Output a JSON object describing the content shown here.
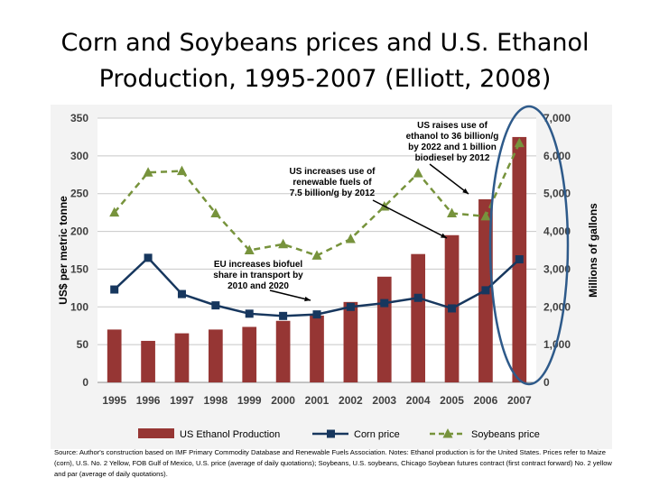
{
  "title": {
    "line1": "Corn and Soybeans prices and U.S. Ethanol",
    "line2": "Production, 1995-2007 (Elliott, 2008)"
  },
  "source_note": "Source: Author's construction based on IMF Primary Commodity Database and Renewable Fuels Association. Notes: Ethanol production is for the United States. Prices refer to Maize (corn), U.S. No. 2 Yellow, FOB Gulf of Mexico, U.S. price (average of daily quotations); Soybeans, U.S. soybeans, Chicago Soybean futures contract (first contract forward) No. 2 yellow and par (average of daily quotations).",
  "chart_data": {
    "type": "bar",
    "categories": [
      "1995",
      "1996",
      "1997",
      "1998",
      "1999",
      "2000",
      "2001",
      "2002",
      "2003",
      "2004",
      "2005",
      "2006",
      "2007"
    ],
    "ylabel": "US$ per metric tonne",
    "y2label": "Millions of gallons",
    "ylim": [
      0,
      350
    ],
    "y2lim": [
      0,
      7000
    ],
    "yticks": [
      "0",
      "50",
      "100",
      "150",
      "200",
      "250",
      "300",
      "350"
    ],
    "y2ticks": [
      "0",
      "1,000",
      "2,000",
      "3,000",
      "4,000",
      "5,000",
      "6,000",
      "7,000"
    ],
    "grid": true,
    "legend_position": "bottom",
    "series": [
      {
        "name": "US Ethanol Production",
        "type": "bar",
        "axis": "right",
        "color": "#963634",
        "values": [
          1400,
          1100,
          1300,
          1400,
          1470,
          1630,
          1770,
          2130,
          2800,
          3400,
          3900,
          4850,
          6500
        ]
      },
      {
        "name": "Corn price",
        "type": "line",
        "axis": "left",
        "color": "#17375e",
        "marker": "square",
        "values": [
          123,
          165,
          117,
          102,
          91,
          88,
          90,
          100,
          105,
          112,
          98,
          122,
          163
        ]
      },
      {
        "name": "Soybeans price",
        "type": "line",
        "axis": "left",
        "color": "#77933c",
        "marker": "triangle",
        "dash": "dashed",
        "values": [
          225,
          278,
          280,
          224,
          175,
          183,
          168,
          190,
          233,
          277,
          224,
          220,
          317
        ]
      }
    ],
    "annotations": [
      {
        "text": [
          "EU increases biofuel",
          "share in transport by",
          "2010 and 2020"
        ],
        "points_to": "2001"
      },
      {
        "text": [
          "US increases use of",
          "renewable fuels of",
          "7.5 billion/g by 2012"
        ],
        "points_to": "2005"
      },
      {
        "text": [
          "US  raises use of",
          "ethanol to 36 billion/g",
          "by 2022 and 1 billion",
          "biodiesel by 2012"
        ],
        "points_to": "2006"
      }
    ],
    "highlight": {
      "shape": "ellipse",
      "around": [
        "2006",
        "2007"
      ],
      "color": "#2e5a8a"
    }
  }
}
